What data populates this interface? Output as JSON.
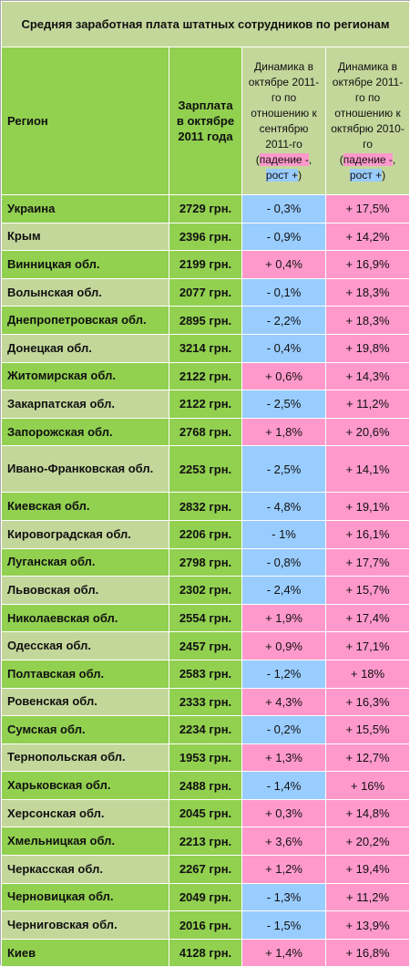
{
  "title": "Средняя заработная плата штатных сотрудников по регионам",
  "headers": {
    "region": "Регион",
    "salary": "Зарплата в октябре 2011 года",
    "dyn1": "Динамика в октябре 2011-го по отношению к сентябрю 2011-го",
    "dyn2": "Динамика в октябре 2011-го по отношению к октябрю 2010-го",
    "legend_open": "(",
    "legend_fall": "падение -",
    "legend_sep": ",",
    "legend_rise": "рост +",
    "legend_close": ")"
  },
  "colors": {
    "green": "#92d050",
    "light_green": "#c4d79b",
    "blue": "#99ccff",
    "pink": "#ff99cc"
  },
  "rows": [
    {
      "region": "Украина",
      "salary": "2729 грн.",
      "dyn1": "- 0,3%",
      "dyn2": "+ 17,5%"
    },
    {
      "region": "Крым",
      "salary": "2396 грн.",
      "dyn1": "- 0,9%",
      "dyn2": "+ 14,2%"
    },
    {
      "region": "Винницкая обл.",
      "salary": "2199 грн.",
      "dyn1": "+ 0,4%",
      "dyn2": "+ 16,9%"
    },
    {
      "region": "Волынская обл.",
      "salary": "2077 грн.",
      "dyn1": "- 0,1%",
      "dyn2": "+ 18,3%"
    },
    {
      "region": "Днепропетровская обл.",
      "salary": "2895 грн.",
      "dyn1": "- 2,2%",
      "dyn2": "+ 18,3%"
    },
    {
      "region": "Донецкая обл.",
      "salary": "3214 грн.",
      "dyn1": "- 0,4%",
      "dyn2": "+ 19,8%"
    },
    {
      "region": "Житомирская обл.",
      "salary": "2122 грн.",
      "dyn1": "+ 0,6%",
      "dyn2": "+ 14,3%"
    },
    {
      "region": "Закарпатская обл.",
      "salary": "2122 грн.",
      "dyn1": "- 2,5%",
      "dyn2": "+ 11,2%"
    },
    {
      "region": "Запорожская обл.",
      "salary": "2768 грн.",
      "dyn1": "+ 1,8%",
      "dyn2": "+ 20,6%"
    },
    {
      "region": "Ивано-Франковская обл.",
      "salary": "2253 грн.",
      "dyn1": "- 2,5%",
      "dyn2": "+ 14,1%"
    },
    {
      "region": "Киевская обл.",
      "salary": "2832 грн.",
      "dyn1": "- 4,8%",
      "dyn2": "+ 19,1%"
    },
    {
      "region": "Кировоградская обл.",
      "salary": "2206 грн.",
      "dyn1": "- 1%",
      "dyn2": "+ 16,1%"
    },
    {
      "region": "Луганская обл.",
      "salary": "2798 грн.",
      "dyn1": "- 0,8%",
      "dyn2": "+ 17,7%"
    },
    {
      "region": "Львовская обл.",
      "salary": "2302 грн.",
      "dyn1": "- 2,4%",
      "dyn2": "+ 15,7%"
    },
    {
      "region": "Николаевская обл.",
      "salary": "2554 грн.",
      "dyn1": "+ 1,9%",
      "dyn2": "+ 17,4%"
    },
    {
      "region": "Одесская обл.",
      "salary": "2457 грн.",
      "dyn1": "+ 0,9%",
      "dyn2": "+ 17,1%"
    },
    {
      "region": "Полтавская обл.",
      "salary": "2583 грн.",
      "dyn1": "- 1,2%",
      "dyn2": "+ 18%"
    },
    {
      "region": "Ровенская обл.",
      "salary": "2333 грн.",
      "dyn1": "+ 4,3%",
      "dyn2": "+ 16,3%"
    },
    {
      "region": "Сумская обл.",
      "salary": "2234 грн.",
      "dyn1": "- 0,2%",
      "dyn2": "+ 15,5%"
    },
    {
      "region": "Тернопольская обл.",
      "salary": "1953 грн.",
      "dyn1": "+ 1,3%",
      "dyn2": "+ 12,7%"
    },
    {
      "region": "Харьковская обл.",
      "salary": "2488 грн.",
      "dyn1": "- 1,4%",
      "dyn2": "+ 16%"
    },
    {
      "region": "Херсонская обл.",
      "salary": "2045 грн.",
      "dyn1": "+ 0,3%",
      "dyn2": "+ 14,8%"
    },
    {
      "region": "Хмельницкая обл.",
      "salary": "2213 грн.",
      "dyn1": "+ 3,6%",
      "dyn2": "+ 20,2%"
    },
    {
      "region": "Черкасская обл.",
      "salary": "2267 грн.",
      "dyn1": "+ 1,2%",
      "dyn2": "+ 19,4%"
    },
    {
      "region": "Черновицкая обл.",
      "salary": "2049 грн.",
      "dyn1": "- 1,3%",
      "dyn2": "+ 11,2%"
    },
    {
      "region": "Черниговская обл.",
      "salary": "2016 грн.",
      "dyn1": "- 1,5%",
      "dyn2": "+ 13,9%"
    },
    {
      "region": "Киев",
      "salary": "4128 грн.",
      "dyn1": "+ 1,4%",
      "dyn2": "+ 16,8%"
    }
  ]
}
